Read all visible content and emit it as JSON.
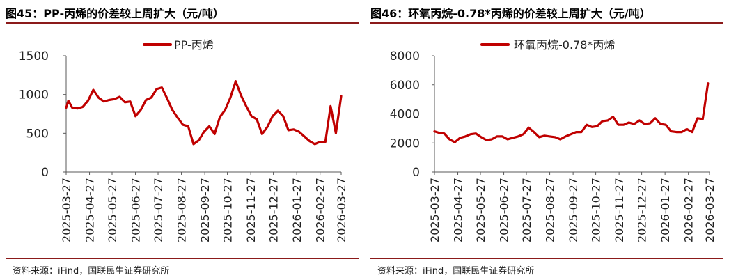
{
  "panels": [
    {
      "title": "图45：PP-丙烯的价差较上周扩大（元/吨）",
      "source": "资料来源：iFind，国联民生证券研究所"
    },
    {
      "title": "图46：环氧丙烷-0.78*丙烯的价差较上周扩大（元/吨）",
      "source": "资料来源：iFind，国联民生证券研究所"
    }
  ],
  "colors": {
    "line": "#c00000",
    "axis": "#595959",
    "rule": "#8b1a1a"
  },
  "chart_data": [
    {
      "type": "line",
      "title": "",
      "xlabel": "",
      "ylabel": "",
      "legend_position": "top-center",
      "grid": false,
      "ylim": [
        0,
        1500
      ],
      "yticks": [
        "0",
        "500",
        "1000",
        "1500"
      ],
      "ytick_values": [
        0,
        500,
        1000,
        1500
      ],
      "xticks": [
        "2025-03-27",
        "2025-04-27",
        "2025-05-27",
        "2025-06-27",
        "2025-07-27",
        "2025-08-27",
        "2025-09-27",
        "2025-10-27",
        "2025-11-27",
        "2025-12-27",
        "2026-01-27",
        "2026-02-27",
        "2026-03-27"
      ],
      "series": [
        {
          "name": "PP-丙烯",
          "x": [
            "2025-03-27",
            "2025-03-30",
            "2025-04-04",
            "2025-04-11",
            "2025-04-18",
            "2025-04-25",
            "2025-05-02",
            "2025-05-09",
            "2025-05-16",
            "2025-05-23",
            "2025-05-30",
            "2025-06-06",
            "2025-06-13",
            "2025-06-20",
            "2025-06-27",
            "2025-07-04",
            "2025-07-11",
            "2025-07-18",
            "2025-07-25",
            "2025-08-01",
            "2025-08-08",
            "2025-08-15",
            "2025-08-22",
            "2025-08-29",
            "2025-09-05",
            "2025-09-12",
            "2025-09-19",
            "2025-09-26",
            "2025-10-03",
            "2025-10-10",
            "2025-10-17",
            "2025-10-24",
            "2025-10-31",
            "2025-11-07",
            "2025-11-14",
            "2025-11-21",
            "2025-11-28",
            "2025-12-05",
            "2025-12-12",
            "2025-12-19",
            "2025-12-26",
            "2026-01-02",
            "2026-01-09",
            "2026-01-16",
            "2026-01-23",
            "2026-01-30",
            "2026-02-06",
            "2026-02-13",
            "2026-02-20",
            "2026-02-27",
            "2026-03-06",
            "2026-03-13",
            "2026-03-20",
            "2026-03-27"
          ],
          "y": [
            830,
            920,
            830,
            820,
            840,
            920,
            1060,
            960,
            910,
            930,
            940,
            970,
            900,
            910,
            720,
            800,
            930,
            960,
            1070,
            1090,
            950,
            800,
            700,
            610,
            590,
            360,
            410,
            520,
            590,
            490,
            710,
            800,
            960,
            1170,
            990,
            850,
            720,
            680,
            490,
            580,
            720,
            790,
            720,
            540,
            550,
            520,
            460,
            400,
            360,
            390,
            390,
            850,
            500,
            980
          ]
        }
      ]
    },
    {
      "type": "line",
      "title": "",
      "xlabel": "",
      "ylabel": "",
      "legend_position": "top-center",
      "grid": false,
      "ylim": [
        0,
        8000
      ],
      "yticks": [
        "0",
        "2000",
        "4000",
        "6000",
        "8000"
      ],
      "ytick_values": [
        0,
        2000,
        4000,
        6000,
        8000
      ],
      "xticks": [
        "2025-03-27",
        "2025-04-27",
        "2025-05-27",
        "2025-06-27",
        "2025-07-27",
        "2025-08-27",
        "2025-09-27",
        "2025-10-27",
        "2025-11-27",
        "2025-12-27",
        "2026-01-27",
        "2026-02-27",
        "2026-03-27"
      ],
      "series": [
        {
          "name": "环氧丙烷-0.78*丙烯",
          "x": [
            "2025-03-27",
            "2025-04-02",
            "2025-04-09",
            "2025-04-16",
            "2025-04-23",
            "2025-04-30",
            "2025-05-07",
            "2025-05-14",
            "2025-05-21",
            "2025-05-28",
            "2025-06-04",
            "2025-06-11",
            "2025-06-18",
            "2025-06-25",
            "2025-07-02",
            "2025-07-09",
            "2025-07-16",
            "2025-07-23",
            "2025-07-30",
            "2025-08-06",
            "2025-08-13",
            "2025-08-20",
            "2025-08-27",
            "2025-09-03",
            "2025-09-10",
            "2025-09-17",
            "2025-09-24",
            "2025-10-01",
            "2025-10-08",
            "2025-10-15",
            "2025-10-22",
            "2025-10-29",
            "2025-11-05",
            "2025-11-12",
            "2025-11-19",
            "2025-11-26",
            "2025-12-03",
            "2025-12-10",
            "2025-12-17",
            "2025-12-24",
            "2025-12-31",
            "2026-01-07",
            "2026-01-14",
            "2026-01-21",
            "2026-01-28",
            "2026-02-04",
            "2026-02-11",
            "2026-02-18",
            "2026-02-25",
            "2026-03-04",
            "2026-03-11",
            "2026-03-18",
            "2026-03-25"
          ],
          "y": [
            2800,
            2700,
            2650,
            2250,
            2050,
            2350,
            2450,
            2600,
            2650,
            2400,
            2200,
            2250,
            2450,
            2450,
            2250,
            2350,
            2450,
            2600,
            3050,
            2750,
            2400,
            2500,
            2450,
            2400,
            2250,
            2450,
            2600,
            2750,
            2750,
            3250,
            3100,
            3150,
            3500,
            3550,
            3800,
            3250,
            3250,
            3400,
            3300,
            3550,
            3300,
            3350,
            3700,
            3300,
            3250,
            2800,
            2750,
            2750,
            2950,
            2750,
            3700,
            3650,
            6100
          ]
        }
      ]
    }
  ]
}
